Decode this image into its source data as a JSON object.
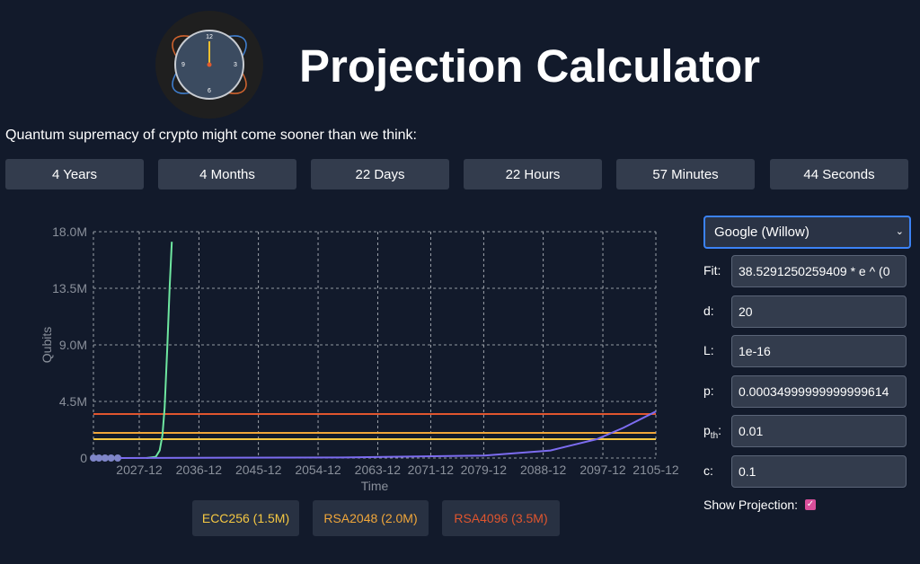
{
  "header": {
    "title": "Projection Calculator",
    "subtitle": "Quantum supremacy of crypto might come sooner than we think:",
    "logo_numerals": [
      "12",
      "3",
      "6",
      "9"
    ]
  },
  "countdown": [
    "4 Years",
    "4 Months",
    "22 Days",
    "22 Hours",
    "57 Minutes",
    "44 Seconds"
  ],
  "chart_data": {
    "type": "line",
    "y_label": "Qubits",
    "x_label": "Time",
    "xlim": [
      "2021-01",
      "2105-12"
    ],
    "xticks": [
      "2027-12",
      "2036-12",
      "2045-12",
      "2054-12",
      "2063-12",
      "2071-12",
      "2079-12",
      "2088-12",
      "2097-12",
      "2105-12"
    ],
    "ylim": [
      0,
      18000000
    ],
    "yticks": [
      0,
      {
        "value": 4500000,
        "label": "4.5M"
      },
      {
        "value": 9000000,
        "label": "9.0M"
      },
      {
        "value": 13500000,
        "label": "13.5M"
      },
      {
        "value": 18000000,
        "label": "18.0M"
      }
    ],
    "grid": true,
    "series": [
      {
        "style": "markers",
        "color": "#7f86c9",
        "x": [
          "2021-01",
          "2021-11",
          "2022-10",
          "2023-09",
          "2024-09"
        ],
        "values": [
          0,
          0,
          0,
          0,
          0
        ]
      },
      {
        "style": "line",
        "color": "#6ee7a0",
        "x": [
          "2029-01",
          "2030-06",
          "2031-01",
          "2031-06",
          "2031-10",
          "2032-03",
          "2032-07",
          "2032-11"
        ],
        "values": [
          0,
          100000,
          600000,
          1800000,
          4000000,
          9000000,
          13500000,
          17200000
        ]
      },
      {
        "style": "line",
        "color": "#7c6cf0",
        "x": [
          "2025-01",
          "2060-01",
          "2080-01",
          "2090-01",
          "2097-01",
          "2101-01",
          "2105-12"
        ],
        "values": [
          0,
          50000,
          200000,
          600000,
          1500000,
          2400000,
          3700000
        ]
      }
    ],
    "thresholds": [
      {
        "label": "ECC256 (1.5M)",
        "value": 1500000,
        "color": "#f5c842"
      },
      {
        "label": "RSA2048 (2.0M)",
        "value": 2000000,
        "color": "#f0a63a"
      },
      {
        "label": "RSA4096 (3.5M)",
        "value": 3500000,
        "color": "#e0552e"
      }
    ]
  },
  "form": {
    "model": "Google (Willow)",
    "fields": [
      {
        "label": "Fit:",
        "value": "38.5291250259409 * e ^ (0"
      },
      {
        "label": "d:",
        "value": "20"
      },
      {
        "label": "L:",
        "value": "1e-16"
      },
      {
        "label": "p:",
        "value": "0.00034999999999999614"
      },
      {
        "label": "p",
        "sub": "th",
        "suffix": ":",
        "value": "0.01"
      },
      {
        "label": "c:",
        "value": "0.1"
      }
    ],
    "show_projection_label": "Show Projection:",
    "show_projection": true
  }
}
